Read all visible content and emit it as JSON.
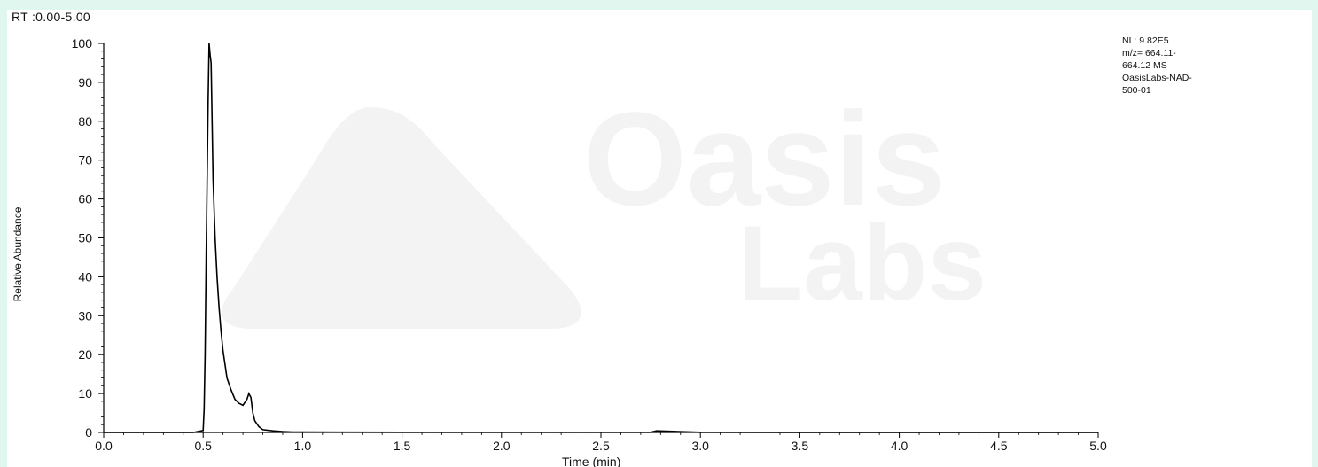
{
  "header": {
    "rt_range": "RT :0.00-5.00"
  },
  "info_box": {
    "lines": [
      "NL: 9.82E5",
      "m/z= 664.11-",
      "664.12 MS",
      "OasisLabs-NAD-",
      "500-01"
    ]
  },
  "watermark": {
    "line1": "Oasis",
    "line2": "Labs"
  },
  "colors": {
    "page_background": "#dff7ee",
    "panel_background": "#ffffff",
    "trace": "#000000",
    "watermark": "#f3f3f3"
  },
  "chart_data": {
    "type": "line",
    "title": "",
    "xlabel": "Time (min)",
    "ylabel": "Relative Abundance",
    "xlim": [
      0.0,
      5.0
    ],
    "ylim": [
      0,
      100
    ],
    "x_ticks": [
      "0.0",
      "0.5",
      "1.0",
      "1.5",
      "2.0",
      "2.5",
      "3.0",
      "3.5",
      "4.0",
      "4.5",
      "5.0"
    ],
    "y_ticks": [
      "0",
      "10",
      "20",
      "30",
      "40",
      "50",
      "60",
      "70",
      "80",
      "90",
      "100"
    ],
    "grid": false,
    "series": [
      {
        "x": [
          0.0,
          0.1,
          0.2,
          0.3,
          0.4,
          0.45,
          0.5,
          0.505,
          0.51,
          0.515,
          0.52,
          0.525,
          0.53,
          0.535,
          0.54,
          0.545,
          0.55,
          0.56,
          0.57,
          0.58,
          0.59,
          0.6,
          0.62,
          0.64,
          0.66,
          0.68,
          0.7,
          0.72,
          0.73,
          0.735,
          0.74,
          0.75,
          0.76,
          0.78,
          0.8,
          0.85,
          0.9,
          0.95,
          1.0,
          1.5,
          2.0,
          2.5,
          2.75,
          2.78,
          3.0,
          3.5,
          4.0,
          4.5,
          5.0
        ],
        "y": [
          0,
          0,
          0,
          0,
          0,
          0,
          0.5,
          6,
          20,
          45,
          65,
          85,
          100,
          97,
          95,
          80,
          65,
          50,
          40,
          32,
          26,
          21,
          14,
          11,
          8.5,
          7.5,
          7,
          8.5,
          10,
          9.5,
          9,
          5,
          3,
          1.5,
          0.7,
          0.4,
          0.2,
          0.1,
          0.1,
          0.05,
          0.05,
          0.05,
          0.05,
          0.4,
          0.05,
          0,
          0,
          0,
          0
        ]
      }
    ]
  }
}
